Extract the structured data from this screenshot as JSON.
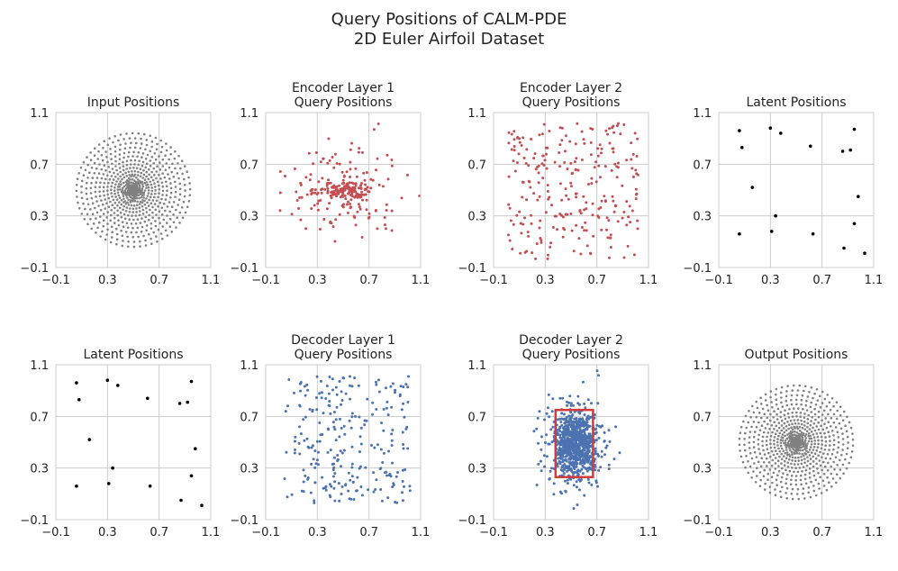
{
  "figure": {
    "title_line1": "Query Positions of CALM-PDE",
    "title_line2": "2D Euler Airfoil Dataset"
  },
  "chart_data": [
    {
      "id": "input",
      "type": "scatter",
      "title_lines": [
        "Input Positions"
      ],
      "gen": "radial",
      "color": "#808080",
      "xlim": [
        -0.1,
        1.1
      ],
      "ylim": [
        -0.1,
        1.1
      ],
      "xticks": [
        "−0.1",
        "0.3",
        "0.7",
        "1.1"
      ],
      "yticks": [
        "1.1",
        "0.7",
        "0.3",
        "−0.1"
      ],
      "pattern": {
        "center": [
          0.5,
          0.5
        ],
        "outer_radius": 0.44,
        "rings": 18,
        "points_first_ring": 14,
        "points_outer_ring": 60
      }
    },
    {
      "id": "enc1",
      "type": "scatter",
      "title_lines": [
        "Encoder Layer 1",
        "Query Positions"
      ],
      "gen": "clustered",
      "color": "#c44e52",
      "xlim": [
        -0.1,
        1.1
      ],
      "ylim": [
        -0.1,
        1.1
      ],
      "xticks": [
        "−0.1",
        "0.3",
        "0.7",
        "1.1"
      ],
      "yticks": [
        "1.1",
        "0.7",
        "0.3",
        "−0.1"
      ],
      "pattern": {
        "center": [
          0.5,
          0.5
        ],
        "core_points": 110,
        "core_spread": [
          0.11,
          0.035
        ],
        "scatter_points": 150,
        "scatter_spread": [
          0.22,
          0.19
        ]
      }
    },
    {
      "id": "enc2",
      "type": "scatter",
      "title_lines": [
        "Encoder Layer 2",
        "Query Positions"
      ],
      "gen": "uniform",
      "color": "#c44e52",
      "xlim": [
        -0.1,
        1.1
      ],
      "ylim": [
        -0.1,
        1.1
      ],
      "xticks": [
        "−0.1",
        "0.3",
        "0.7",
        "1.1"
      ],
      "yticks": [
        "1.1",
        "0.7",
        "0.3",
        "−0.1"
      ],
      "pattern": {
        "x_range": [
          0.0,
          1.02
        ],
        "y_range": [
          -0.04,
          1.02
        ],
        "points": 256
      }
    },
    {
      "id": "lat1",
      "type": "scatter",
      "title_lines": [
        "Latent Positions"
      ],
      "color": "#000000",
      "xlim": [
        -0.1,
        1.1
      ],
      "ylim": [
        -0.1,
        1.1
      ],
      "xticks": [
        "−0.1",
        "0.3",
        "0.7",
        "1.1"
      ],
      "yticks": [
        "1.1",
        "0.7",
        "0.3",
        "−0.1"
      ],
      "x": [
        0.06,
        0.08,
        0.3,
        0.38,
        0.61,
        0.95,
        0.92,
        0.86,
        0.16,
        0.98,
        0.34,
        0.95,
        0.06,
        0.31,
        0.63,
        0.87,
        1.03
      ],
      "y": [
        0.96,
        0.83,
        0.98,
        0.94,
        0.84,
        0.97,
        0.81,
        0.8,
        0.52,
        0.45,
        0.3,
        0.24,
        0.16,
        0.18,
        0.16,
        0.05,
        0.01
      ]
    },
    {
      "id": "lat2",
      "type": "scatter",
      "title_lines": [
        "Latent Positions"
      ],
      "color": "#000000",
      "xlim": [
        -0.1,
        1.1
      ],
      "ylim": [
        -0.1,
        1.1
      ],
      "xticks": [
        "−0.1",
        "0.3",
        "0.7",
        "1.1"
      ],
      "yticks": [
        "1.1",
        "0.7",
        "0.3",
        "−0.1"
      ],
      "x": [
        0.06,
        0.08,
        0.3,
        0.38,
        0.61,
        0.95,
        0.92,
        0.86,
        0.16,
        0.98,
        0.34,
        0.95,
        0.06,
        0.31,
        0.63,
        0.87,
        1.03
      ],
      "y": [
        0.96,
        0.83,
        0.98,
        0.94,
        0.84,
        0.97,
        0.81,
        0.8,
        0.52,
        0.45,
        0.3,
        0.24,
        0.16,
        0.18,
        0.16,
        0.05,
        0.01
      ]
    },
    {
      "id": "dec1",
      "type": "scatter",
      "title_lines": [
        "Decoder Layer 1",
        "Query Positions"
      ],
      "gen": "uniform",
      "color": "#4c72b0",
      "xlim": [
        -0.1,
        1.1
      ],
      "ylim": [
        -0.1,
        1.1
      ],
      "xticks": [
        "−0.1",
        "0.3",
        "0.7",
        "1.1"
      ],
      "yticks": [
        "1.1",
        "0.7",
        "0.3",
        "−0.1"
      ],
      "pattern": {
        "x_range": [
          0.04,
          1.02
        ],
        "y_range": [
          0.02,
          1.01
        ],
        "points": 256
      }
    },
    {
      "id": "dec2",
      "type": "scatter",
      "title_lines": [
        "Decoder Layer 2",
        "Query Positions"
      ],
      "gen": "clustered",
      "color": "#4c72b0",
      "xlim": [
        -0.1,
        1.1
      ],
      "ylim": [
        -0.1,
        1.1
      ],
      "xticks": [
        "−0.1",
        "0.3",
        "0.7",
        "1.1"
      ],
      "yticks": [
        "1.1",
        "0.7",
        "0.3",
        "−0.1"
      ],
      "pattern": {
        "center": [
          0.53,
          0.49
        ],
        "core_points": 650,
        "core_spread": [
          0.07,
          0.12
        ],
        "scatter_points": 260,
        "scatter_spread": [
          0.14,
          0.17
        ]
      },
      "highlight_box": {
        "x0": 0.38,
        "x1": 0.67,
        "y0": 0.23,
        "y1": 0.75,
        "color": "#d03c3c"
      }
    },
    {
      "id": "output",
      "type": "scatter",
      "title_lines": [
        "Output Positions"
      ],
      "gen": "radial",
      "color": "#808080",
      "xlim": [
        -0.1,
        1.1
      ],
      "ylim": [
        -0.1,
        1.1
      ],
      "xticks": [
        "−0.1",
        "0.3",
        "0.7",
        "1.1"
      ],
      "yticks": [
        "1.1",
        "0.7",
        "0.3",
        "−0.1"
      ],
      "pattern": {
        "center": [
          0.5,
          0.5
        ],
        "outer_radius": 0.44,
        "rings": 18,
        "points_first_ring": 14,
        "points_outer_ring": 60
      }
    }
  ]
}
